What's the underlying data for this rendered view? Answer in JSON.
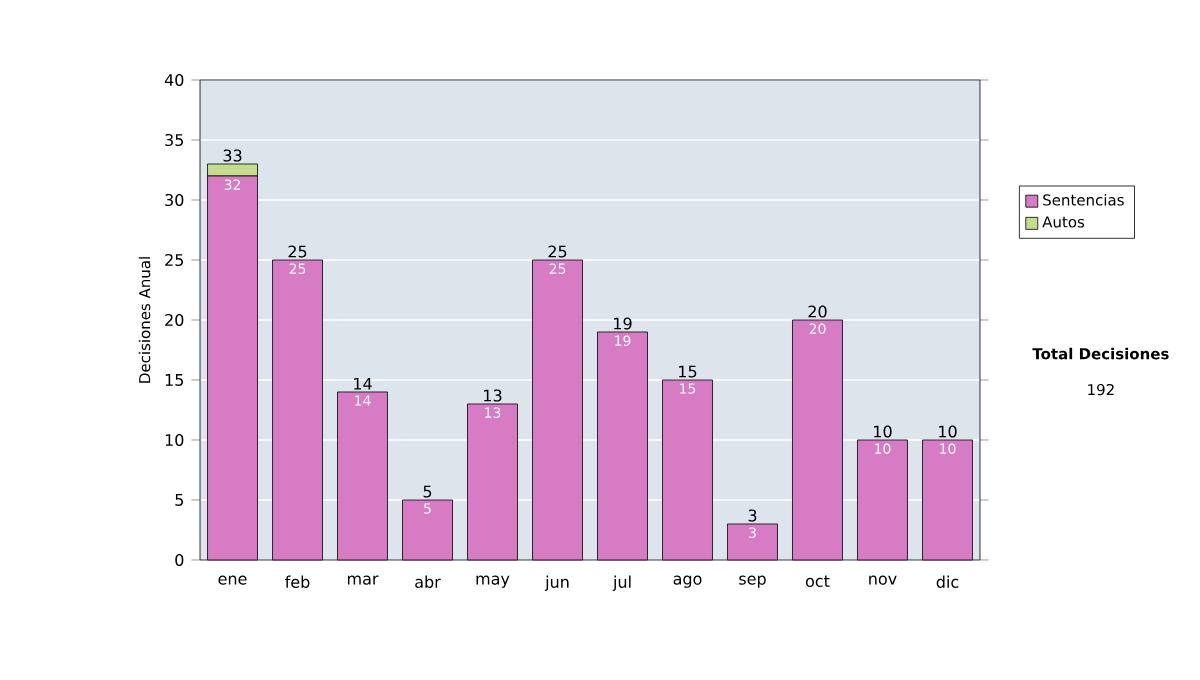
{
  "chart_data": {
    "type": "bar",
    "stacked": true,
    "ylabel": "Decisiones Anual",
    "categories": [
      "ene",
      "feb",
      "mar",
      "abr",
      "may",
      "jun",
      "jul",
      "ago",
      "sep",
      "oct",
      "nov",
      "dic"
    ],
    "series": [
      {
        "name": "Sentencias",
        "color": "#d77bc4",
        "values": [
          32,
          25,
          14,
          5,
          13,
          25,
          19,
          15,
          3,
          20,
          10,
          10
        ],
        "value_labels": [
          "32",
          "25",
          "14",
          "5",
          "13",
          "25",
          "19",
          "15",
          "3",
          "20",
          "10",
          "10"
        ]
      },
      {
        "name": "Autos",
        "color": "#c3dd8c",
        "values": [
          1,
          null,
          null,
          null,
          null,
          null,
          null,
          null,
          null,
          null,
          null,
          null
        ]
      }
    ],
    "totals": [
      "33",
      "25",
      "14",
      "5",
      "13",
      "25",
      "19",
      "15",
      "3",
      "20",
      "10",
      "10"
    ],
    "ylim": [
      0,
      40
    ],
    "yticks": [
      0,
      5,
      10,
      15,
      20,
      25,
      30,
      35,
      40
    ],
    "grid": "y",
    "legend": "right",
    "annotations": [
      "Total Decisiones",
      "192"
    ]
  }
}
